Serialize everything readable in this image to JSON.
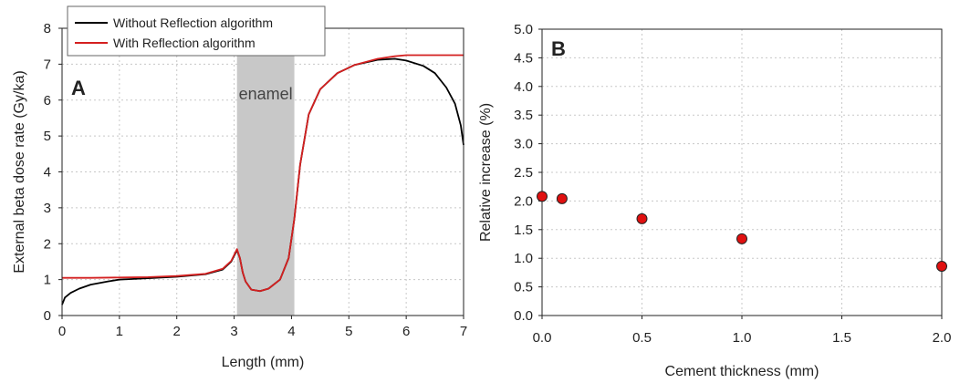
{
  "chart_data": [
    {
      "panel": "A",
      "type": "line",
      "xlabel": "Length (mm)",
      "ylabel": "External beta dose rate (Gy/ka)",
      "xlim": [
        0,
        7
      ],
      "ylim": [
        0,
        8
      ],
      "xticks": [
        "0",
        "1",
        "2",
        "3",
        "4",
        "5",
        "6",
        "7"
      ],
      "yticks": [
        "0",
        "1",
        "2",
        "3",
        "4",
        "5",
        "6",
        "7",
        "8"
      ],
      "grid": true,
      "legend_position": "top-left",
      "shaded_region": {
        "label": "enamel",
        "x": [
          3.05,
          4.05
        ],
        "color": "#c8c8c8"
      },
      "series": [
        {
          "name": "Without Reflection algorithm",
          "color": "#000000",
          "points": [
            [
              0,
              0.3
            ],
            [
              0.05,
              0.5
            ],
            [
              0.15,
              0.63
            ],
            [
              0.3,
              0.75
            ],
            [
              0.5,
              0.86
            ],
            [
              0.8,
              0.95
            ],
            [
              1.0,
              1.0
            ],
            [
              1.5,
              1.04
            ],
            [
              2.0,
              1.08
            ],
            [
              2.5,
              1.15
            ],
            [
              2.8,
              1.28
            ],
            [
              2.95,
              1.5
            ],
            [
              3.05,
              1.82
            ],
            [
              3.1,
              1.6
            ],
            [
              3.15,
              1.2
            ],
            [
              3.2,
              0.95
            ],
            [
              3.3,
              0.72
            ],
            [
              3.45,
              0.68
            ],
            [
              3.6,
              0.75
            ],
            [
              3.8,
              1.0
            ],
            [
              3.95,
              1.6
            ],
            [
              4.05,
              2.7
            ],
            [
              4.15,
              4.2
            ],
            [
              4.3,
              5.6
            ],
            [
              4.5,
              6.3
            ],
            [
              4.8,
              6.75
            ],
            [
              5.1,
              6.98
            ],
            [
              5.5,
              7.12
            ],
            [
              5.8,
              7.15
            ],
            [
              6.0,
              7.1
            ],
            [
              6.3,
              6.95
            ],
            [
              6.5,
              6.75
            ],
            [
              6.7,
              6.35
            ],
            [
              6.85,
              5.9
            ],
            [
              6.95,
              5.3
            ],
            [
              7.0,
              4.75
            ]
          ]
        },
        {
          "name": "With Reflection algorithm",
          "color": "#d42020",
          "points": [
            [
              0,
              1.05
            ],
            [
              0.5,
              1.05
            ],
            [
              1.0,
              1.06
            ],
            [
              1.5,
              1.07
            ],
            [
              2.0,
              1.1
            ],
            [
              2.5,
              1.16
            ],
            [
              2.8,
              1.3
            ],
            [
              2.95,
              1.52
            ],
            [
              3.05,
              1.85
            ],
            [
              3.1,
              1.6
            ],
            [
              3.15,
              1.2
            ],
            [
              3.2,
              0.95
            ],
            [
              3.3,
              0.72
            ],
            [
              3.45,
              0.68
            ],
            [
              3.6,
              0.75
            ],
            [
              3.8,
              1.0
            ],
            [
              3.95,
              1.6
            ],
            [
              4.05,
              2.7
            ],
            [
              4.15,
              4.2
            ],
            [
              4.3,
              5.6
            ],
            [
              4.5,
              6.3
            ],
            [
              4.8,
              6.75
            ],
            [
              5.1,
              6.98
            ],
            [
              5.5,
              7.15
            ],
            [
              5.8,
              7.22
            ],
            [
              6.0,
              7.25
            ],
            [
              6.5,
              7.25
            ],
            [
              7.0,
              7.25
            ]
          ]
        }
      ]
    },
    {
      "panel": "B",
      "type": "scatter",
      "xlabel": "Cement thickness (mm)",
      "ylabel": "Relative increase (%)",
      "xlim": [
        0,
        2
      ],
      "ylim": [
        0,
        5
      ],
      "xticks": [
        "0.0",
        "0.5",
        "1.0",
        "1.5",
        "2.0"
      ],
      "yticks": [
        "0.0",
        "0.5",
        "1.0",
        "1.5",
        "2.0",
        "2.5",
        "3.0",
        "3.5",
        "4.0",
        "4.5",
        "5.0"
      ],
      "grid": true,
      "marker_color": "#e01010",
      "points": [
        [
          0.0,
          2.08
        ],
        [
          0.1,
          2.04
        ],
        [
          0.5,
          1.69
        ],
        [
          1.0,
          1.34
        ],
        [
          2.0,
          0.86
        ]
      ]
    }
  ]
}
